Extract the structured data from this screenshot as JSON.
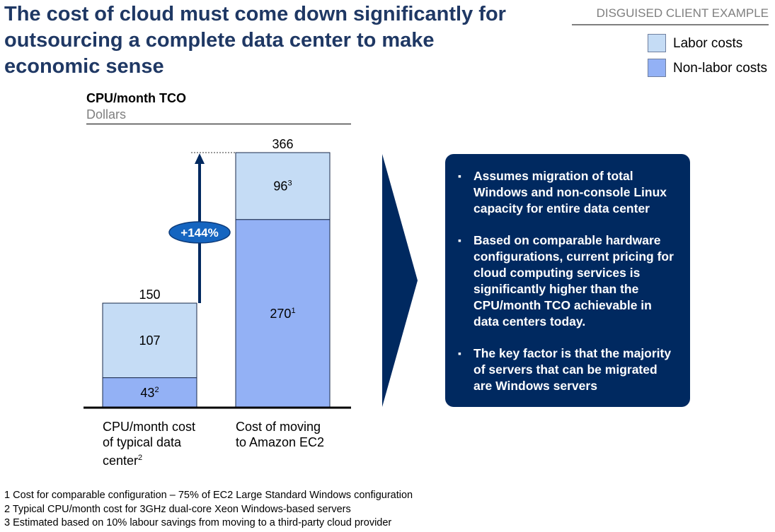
{
  "title": "The cost of cloud must come down significantly for\noutsourcing a complete data center to make\neconomic sense",
  "tag": "DISGUISED CLIENT EXAMPLE",
  "legend": [
    {
      "label": "Labor costs",
      "color": "#c5dcf5"
    },
    {
      "label": "Non-labor costs",
      "color": "#93b1f5"
    }
  ],
  "chart_data": {
    "type": "bar",
    "stacked": true,
    "title": "CPU/month TCO",
    "ylabel": "Dollars",
    "categories": [
      "CPU/month cost\nof typical data\ncenter",
      "Cost of moving\nto Amazon EC2"
    ],
    "category_footnotes": [
      "2",
      ""
    ],
    "series": [
      {
        "name": "Non-labor costs",
        "values": [
          43,
          270
        ],
        "footnotes": [
          "2",
          "1"
        ],
        "color": "#93b1f5"
      },
      {
        "name": "Labor costs",
        "values": [
          107,
          96
        ],
        "footnotes": [
          "",
          "3"
        ],
        "color": "#c5dcf5"
      }
    ],
    "totals": [
      150,
      366
    ],
    "annotation": "+144%",
    "ylim": [
      0,
      366
    ],
    "grid": false
  },
  "panel": {
    "bullet_marker": "▪",
    "bullets": [
      "Assumes migration of total Windows and non-console Linux capacity for entire data center",
      "Based on comparable hardware configurations, current pricing for cloud computing services is significantly higher than the CPU/month TCO achievable in data centers today.",
      "The key factor is that the majority of servers that can be migrated are Windows servers"
    ]
  },
  "footnotes": [
    "1 Cost for comparable configuration – 75% of EC2 Large Standard Windows configuration",
    "2 Typical CPU/month cost for 3GHz dual-core Xeon Windows-based servers",
    "3 Estimated based on 10% labour savings from moving to a third-party cloud provider"
  ]
}
